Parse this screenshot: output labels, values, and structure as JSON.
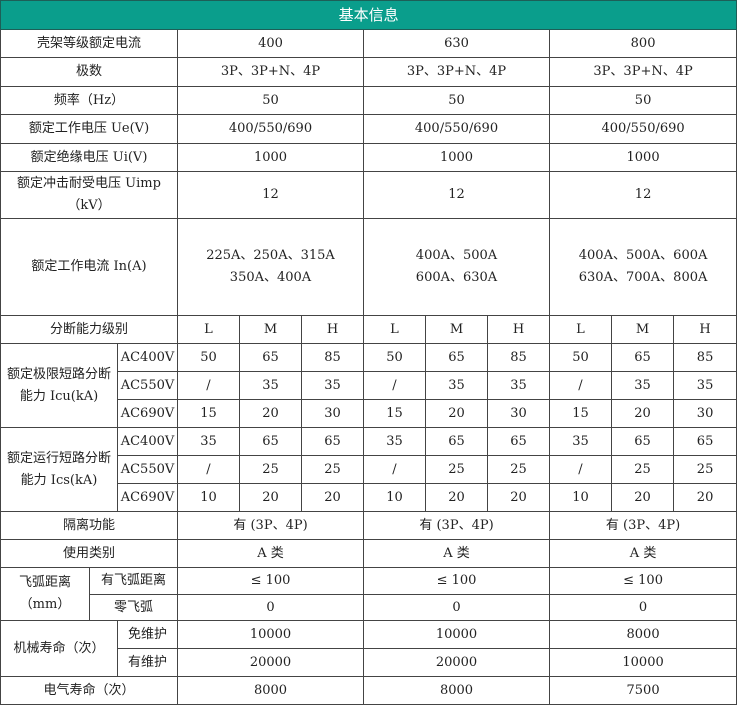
{
  "header": {
    "title": "基本信息",
    "color": "#0a9e8c"
  },
  "simple_rows": [
    {
      "label": "壳架等级额定电流",
      "values": [
        "400",
        "630",
        "800"
      ]
    },
    {
      "label": "极数",
      "values": [
        "3P、3P+N、4P",
        "3P、3P+N、4P",
        "3P、3P+N、4P"
      ]
    },
    {
      "label": "频率（Hz）",
      "values": [
        "50",
        "50",
        "50"
      ]
    },
    {
      "label": "额定工作电压 Ue(V)",
      "values": [
        "400/550/690",
        "400/550/690",
        "400/550/690"
      ]
    },
    {
      "label": "额定绝缘电压 Ui(V)",
      "values": [
        "1000",
        "1000",
        "1000"
      ]
    },
    {
      "label": "额定冲击耐受电压 Uimp（kV）",
      "values": [
        "12",
        "12",
        "12"
      ]
    },
    {
      "label": "额定工作电流 In(A)",
      "values": [
        "225A、250A、315A\n350A、400A",
        "400A、500A\n600A、630A",
        "400A、500A、600A\n630A、700A、800A"
      ]
    }
  ],
  "breaking_level": {
    "label": "分断能力级别",
    "levels": [
      "L",
      "M",
      "H",
      "L",
      "M",
      "H",
      "L",
      "M",
      "H"
    ]
  },
  "icu": {
    "label": "额定极限短路分断能力 Icu(kA)",
    "rows": [
      {
        "voltage": "AC400V",
        "values": [
          "50",
          "65",
          "85",
          "50",
          "65",
          "85",
          "50",
          "65",
          "85"
        ]
      },
      {
        "voltage": "AC550V",
        "values": [
          "/",
          "35",
          "35",
          "/",
          "35",
          "35",
          "/",
          "35",
          "35"
        ]
      },
      {
        "voltage": "AC690V",
        "values": [
          "15",
          "20",
          "30",
          "15",
          "20",
          "30",
          "15",
          "20",
          "30"
        ]
      }
    ]
  },
  "ics": {
    "label": "额定运行短路分断能力 Ics(kA)",
    "rows": [
      {
        "voltage": "AC400V",
        "values": [
          "35",
          "65",
          "65",
          "35",
          "65",
          "65",
          "35",
          "65",
          "65"
        ]
      },
      {
        "voltage": "AC550V",
        "values": [
          "/",
          "25",
          "25",
          "/",
          "25",
          "25",
          "/",
          "25",
          "25"
        ]
      },
      {
        "voltage": "AC690V",
        "values": [
          "10",
          "20",
          "20",
          "10",
          "20",
          "20",
          "10",
          "20",
          "20"
        ]
      }
    ]
  },
  "isolation": {
    "label": "隔离功能",
    "values": [
      "有 (3P、4P)",
      "有 (3P、4P)",
      "有 (3P、4P)"
    ]
  },
  "category": {
    "label": "使用类别",
    "values": [
      "A 类",
      "A 类",
      "A 类"
    ]
  },
  "arc": {
    "label": "飞弧距离（mm）",
    "rows": [
      {
        "sub": "有飞弧距离",
        "values": [
          "≤ 100",
          "≤ 100",
          "≤ 100"
        ]
      },
      {
        "sub": "零飞弧",
        "values": [
          "0",
          "0",
          "0"
        ]
      }
    ]
  },
  "mech": {
    "label": "机械寿命（次）",
    "rows": [
      {
        "sub": "免维护",
        "values": [
          "10000",
          "10000",
          "8000"
        ]
      },
      {
        "sub": "有维护",
        "values": [
          "20000",
          "20000",
          "10000"
        ]
      }
    ]
  },
  "electric": {
    "label": "电气寿命（次）",
    "values": [
      "8000",
      "8000",
      "7500"
    ]
  }
}
